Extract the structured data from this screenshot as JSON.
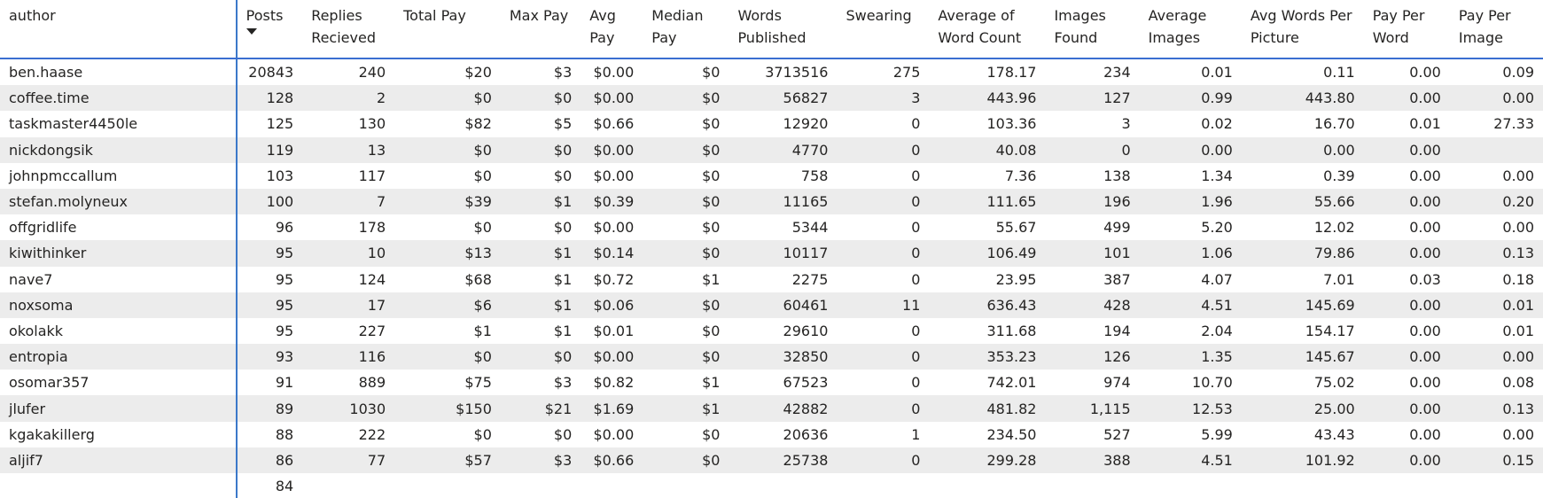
{
  "table": {
    "columns": [
      {
        "key": "author",
        "label": "author"
      },
      {
        "key": "posts",
        "label": "Posts",
        "sort": "descending",
        "sort_icon": "sort-descending-icon"
      },
      {
        "key": "replies",
        "label": "Replies Recieved"
      },
      {
        "key": "total_pay",
        "label": "Total Pay"
      },
      {
        "key": "max_pay",
        "label": "Max Pay"
      },
      {
        "key": "avg_pay",
        "label": "Avg Pay"
      },
      {
        "key": "median_pay",
        "label": "Median Pay"
      },
      {
        "key": "words",
        "label": "Words Published"
      },
      {
        "key": "swearing",
        "label": "Swearing"
      },
      {
        "key": "avg_word_count",
        "label": "Average of Word Count"
      },
      {
        "key": "images_found",
        "label": "Images Found"
      },
      {
        "key": "avg_images",
        "label": "Average Images"
      },
      {
        "key": "avg_words_per_picture",
        "label": "Avg Words Per Picture"
      },
      {
        "key": "pay_per_word",
        "label": "Pay Per Word"
      },
      {
        "key": "pay_per_image",
        "label": "Pay Per Image"
      }
    ],
    "rows": [
      [
        "ben.haase",
        "20843",
        "240",
        "$20",
        "$3",
        "$0.00",
        "$0",
        "3713516",
        "275",
        "178.17",
        "234",
        "0.01",
        "0.11",
        "0.00",
        "0.09"
      ],
      [
        "coffee.time",
        "128",
        "2",
        "$0",
        "$0",
        "$0.00",
        "$0",
        "56827",
        "3",
        "443.96",
        "127",
        "0.99",
        "443.80",
        "0.00",
        "0.00"
      ],
      [
        "taskmaster4450le",
        "125",
        "130",
        "$82",
        "$5",
        "$0.66",
        "$0",
        "12920",
        "0",
        "103.36",
        "3",
        "0.02",
        "16.70",
        "0.01",
        "27.33"
      ],
      [
        "nickdongsik",
        "119",
        "13",
        "$0",
        "$0",
        "$0.00",
        "$0",
        "4770",
        "0",
        "40.08",
        "0",
        "0.00",
        "0.00",
        "0.00",
        ""
      ],
      [
        "johnpmccallum",
        "103",
        "117",
        "$0",
        "$0",
        "$0.00",
        "$0",
        "758",
        "0",
        "7.36",
        "138",
        "1.34",
        "0.39",
        "0.00",
        "0.00"
      ],
      [
        "stefan.molyneux",
        "100",
        "7",
        "$39",
        "$1",
        "$0.39",
        "$0",
        "11165",
        "0",
        "111.65",
        "196",
        "1.96",
        "55.66",
        "0.00",
        "0.20"
      ],
      [
        "offgridlife",
        "96",
        "178",
        "$0",
        "$0",
        "$0.00",
        "$0",
        "5344",
        "0",
        "55.67",
        "499",
        "5.20",
        "12.02",
        "0.00",
        "0.00"
      ],
      [
        "kiwithinker",
        "95",
        "10",
        "$13",
        "$1",
        "$0.14",
        "$0",
        "10117",
        "0",
        "106.49",
        "101",
        "1.06",
        "79.86",
        "0.00",
        "0.13"
      ],
      [
        "nave7",
        "95",
        "124",
        "$68",
        "$1",
        "$0.72",
        "$1",
        "2275",
        "0",
        "23.95",
        "387",
        "4.07",
        "7.01",
        "0.03",
        "0.18"
      ],
      [
        "noxsoma",
        "95",
        "17",
        "$6",
        "$1",
        "$0.06",
        "$0",
        "60461",
        "11",
        "636.43",
        "428",
        "4.51",
        "145.69",
        "0.00",
        "0.01"
      ],
      [
        "okolakk",
        "95",
        "227",
        "$1",
        "$1",
        "$0.01",
        "$0",
        "29610",
        "0",
        "311.68",
        "194",
        "2.04",
        "154.17",
        "0.00",
        "0.01"
      ],
      [
        "entropia",
        "93",
        "116",
        "$0",
        "$0",
        "$0.00",
        "$0",
        "32850",
        "0",
        "353.23",
        "126",
        "1.35",
        "145.67",
        "0.00",
        "0.00"
      ],
      [
        "osomar357",
        "91",
        "889",
        "$75",
        "$3",
        "$0.82",
        "$1",
        "67523",
        "0",
        "742.01",
        "974",
        "10.70",
        "75.02",
        "0.00",
        "0.08"
      ],
      [
        "jlufer",
        "89",
        "1030",
        "$150",
        "$21",
        "$1.69",
        "$1",
        "42882",
        "0",
        "481.82",
        "1,115",
        "12.53",
        "25.00",
        "0.00",
        "0.13"
      ],
      [
        "kgakakillerg",
        "88",
        "222",
        "$0",
        "$0",
        "$0.00",
        "$0",
        "20636",
        "1",
        "234.50",
        "527",
        "5.99",
        "43.43",
        "0.00",
        "0.00"
      ],
      [
        "aljif7",
        "86",
        "77",
        "$57",
        "$3",
        "$0.66",
        "$0",
        "25738",
        "0",
        "299.28",
        "388",
        "4.51",
        "101.92",
        "0.00",
        "0.15"
      ],
      [
        "",
        "84",
        "",
        "",
        "",
        "",
        "",
        "",
        "",
        "",
        "",
        "",
        "",
        "",
        ""
      ]
    ]
  }
}
